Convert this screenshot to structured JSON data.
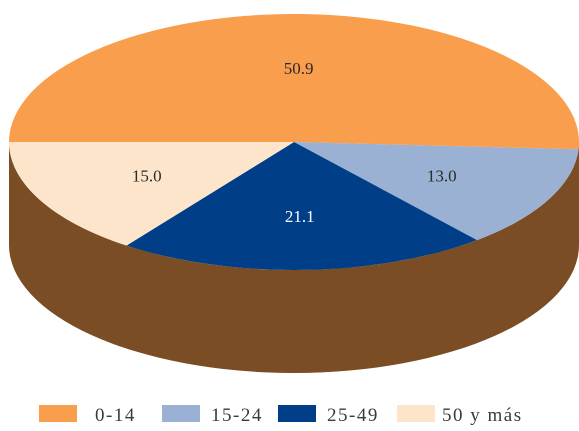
{
  "chart_data": {
    "type": "pie",
    "variant": "3d",
    "categories": [
      "0-14",
      "15-24",
      "25-49",
      "50 y más"
    ],
    "values": [
      50.9,
      13.0,
      21.1,
      15.0
    ],
    "labels": [
      "50.9",
      "13.0",
      "21.1",
      "15.0"
    ],
    "colors": [
      "#F99E4C",
      "#9AB1D4",
      "#003F87",
      "#FDE5CB"
    ],
    "side_color": "#7A4D24",
    "label_colors": [
      "#2a2a2a",
      "#2a2a2a",
      "#ffffff",
      "#2a2a2a"
    ],
    "legend_placement": "bottom"
  }
}
